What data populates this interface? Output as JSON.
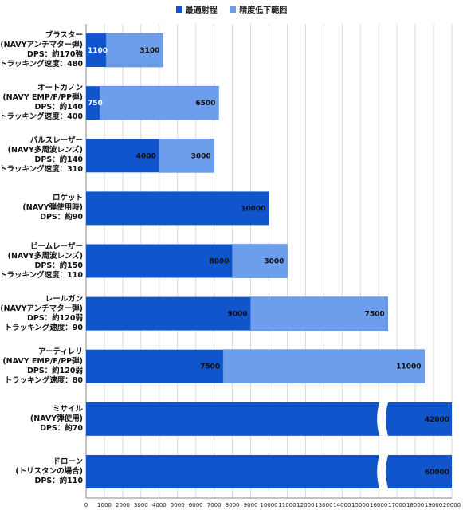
{
  "chart_data": {
    "type": "bar",
    "orientation": "horizontal",
    "stacked": true,
    "legend_position": "top",
    "grid": true,
    "xlim": [
      0,
      20000
    ],
    "x_ticks": [
      "0",
      "1000",
      "2000",
      "3000",
      "4000",
      "5000",
      "6000",
      "7000",
      "8000",
      "9000",
      "10000",
      "11000",
      "12000",
      "13000",
      "14000",
      "15000",
      "16000",
      "17000",
      "18000",
      "19000",
      "20000"
    ],
    "categories": [
      {
        "lines": [
          "ブラスター",
          "(NAVYアンチマター弾)",
          "DPS：約170強",
          "トラッキング速度：480"
        ]
      },
      {
        "lines": [
          "オートカノン",
          "(NAVY EMP/F/PP弾)",
          "DPS：約140",
          "トラッキング速度：400"
        ]
      },
      {
        "lines": [
          "パルスレーザー",
          "(NAVY多周波レンズ)",
          "DPS：約140",
          "トラッキング速度：310"
        ]
      },
      {
        "lines": [
          "ロケット",
          "(NAVY弾使用時)",
          "DPS：約90"
        ]
      },
      {
        "lines": [
          "ビームレーザー",
          "(NAVY多周波レンズ)",
          "DPS：約150",
          "トラッキング速度：110"
        ]
      },
      {
        "lines": [
          "レールガン",
          "(NAVYアンチマター弾)",
          "DPS：約120弱",
          "トラッキング速度：90"
        ]
      },
      {
        "lines": [
          "アーティレリ",
          "(NAVY EMP/F/PP弾)",
          "DPS：約120弱",
          "トラッキング速度：80"
        ]
      },
      {
        "lines": [
          "ミサイル",
          "(NAVY弾使用)",
          "DPS：約70"
        ]
      },
      {
        "lines": [
          "ドローン",
          "(トリスタンの場合)",
          "DPS：約110"
        ]
      }
    ],
    "series": [
      {
        "name": "最適射程",
        "color": "#1155cc",
        "values": [
          1100,
          750,
          4000,
          10000,
          8000,
          9000,
          7500,
          42000,
          60000
        ],
        "labels": [
          "1100",
          "750",
          "4000",
          "10000",
          "8000",
          "9000",
          "7500",
          "42000",
          "60000"
        ]
      },
      {
        "name": "精度低下範囲",
        "color": "#6d9eeb",
        "values": [
          3100,
          6500,
          3000,
          0,
          3000,
          7500,
          11000,
          0,
          0
        ],
        "labels": [
          "3100",
          "6500",
          "3000",
          "",
          "3000",
          "7500",
          "11000",
          "",
          ""
        ]
      }
    ],
    "axis_break": [
      true,
      false
    ]
  }
}
